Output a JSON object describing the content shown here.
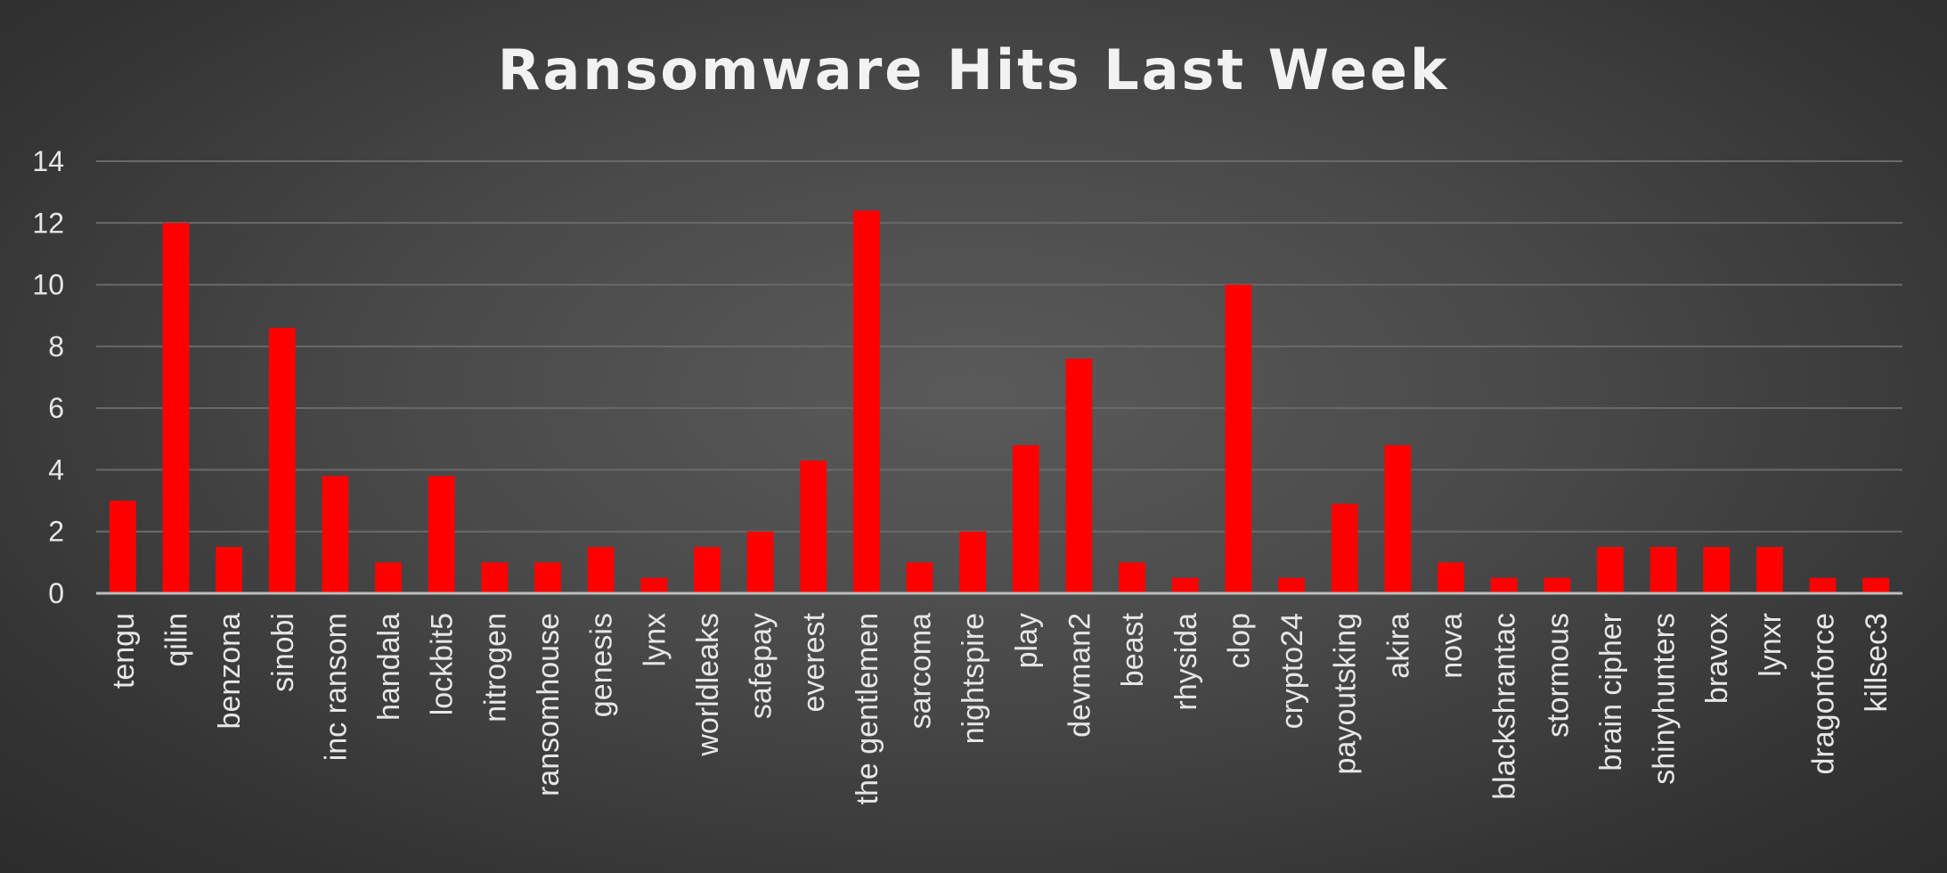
{
  "chart_data": {
    "type": "bar",
    "title": "Ransomware Hits Last Week",
    "xlabel": "",
    "ylabel": "",
    "ylim": [
      0,
      14
    ],
    "yticks": [
      0,
      2,
      4,
      6,
      8,
      10,
      12,
      14
    ],
    "grid": true,
    "legend": "none",
    "bar_color": "#ff0000",
    "categories": [
      "tengu",
      "qilin",
      "benzona",
      "sinobi",
      "inc ransom",
      "handala",
      "lockbit5",
      "nitrogen",
      "ransomhouse",
      "genesis",
      "lynx",
      "worldleaks",
      "safepay",
      "everest",
      "the gentlemen",
      "sarcoma",
      "nightspire",
      "play",
      "devman2",
      "beast",
      "rhysida",
      "clop",
      "crypto24",
      "payoutsking",
      "akira",
      "nova",
      "blackshrantac",
      "stormous",
      "brain cipher",
      "shinyhunters",
      "bravox",
      "lynxr",
      "dragonforce",
      "killsec3"
    ],
    "values": [
      3,
      12,
      1.5,
      8.6,
      3.8,
      1,
      3.8,
      1,
      1,
      1.5,
      0.5,
      1.5,
      2,
      4.3,
      12.4,
      1,
      2,
      4.8,
      7.6,
      1,
      0.5,
      10,
      0.5,
      2.9,
      4.8,
      1,
      0.5,
      0.5,
      1.5,
      1.5,
      1.5,
      1.5,
      0.5,
      0.5
    ]
  }
}
